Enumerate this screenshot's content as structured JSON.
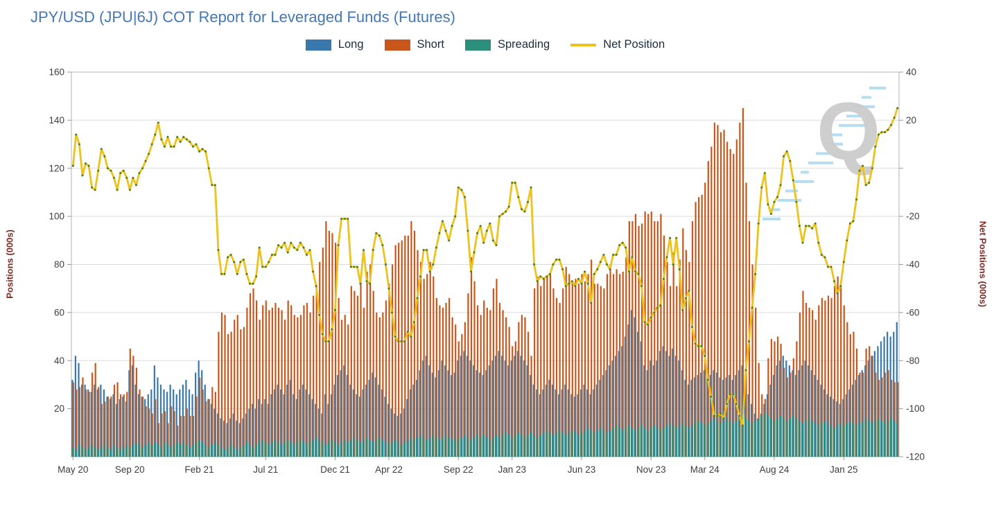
{
  "title": "JPY/USD (JPU|6J) COT Report for Leveraged Funds (Futures)",
  "legend": {
    "items": [
      {
        "label": "Long",
        "color": "#3878ad",
        "swatch": "box"
      },
      {
        "label": "Short",
        "color": "#c9561a",
        "swatch": "box"
      },
      {
        "label": "Spreading",
        "color": "#2b8f7c",
        "swatch": "box"
      },
      {
        "label": "Net Position",
        "color": "#ecc21c",
        "swatch": "line"
      }
    ]
  },
  "left_axis": {
    "title": "Positions (000s)",
    "tick_labels": [
      "160",
      "140",
      "120",
      "100",
      "80",
      "60",
      "40",
      "20"
    ],
    "range": [
      0,
      160
    ]
  },
  "right_axis": {
    "title": "Net Positions (000s)",
    "tick_labels": [
      "40",
      "20",
      "",
      "-20",
      "-40",
      "-60",
      "-80",
      "-100",
      "-120"
    ],
    "range": [
      -120,
      40
    ]
  },
  "x_axis": {
    "tick_labels": [
      "May 20",
      "Sep 20",
      "Feb 21",
      "Jul 21",
      "Dec 21",
      "Apr 22",
      "Sep 22",
      "Jan 23",
      "Jun 23",
      "Nov 23",
      "Mar 24",
      "Aug 24",
      "Jan 25"
    ],
    "tick_week_indices": [
      0,
      18,
      40,
      61,
      83,
      100,
      122,
      139,
      161,
      183,
      200,
      222,
      244
    ]
  },
  "watermark": {
    "letter": "Q",
    "letter_color": "#cccccc",
    "dash_color": "#aedcf0"
  },
  "colors": {
    "title": "#4477b6",
    "legend_text": "#1d2b3a",
    "axis_title": "#7d2b24",
    "tick_text": "#3d3d3d",
    "grid": "#dcdcdc",
    "frame": "#b3b3b3",
    "tick_mark": "#999999",
    "long": "#3878ad",
    "short": "#c9561a",
    "spreading": "#2b8f7c",
    "overlap": "#82746a",
    "net_line": "#ecc21c",
    "net_marker": "#4b7a1f"
  },
  "chart_data": {
    "type": "bar",
    "subtype": "weekly grouped bars (Long, Short, Spreading) with Net Position line on secondary axis",
    "x_unit": "weekly COT reports, May 2020 - May 2025",
    "n_points": 262,
    "x_tick_labels": [
      "May 20",
      "Sep 20",
      "Feb 21",
      "Jul 21",
      "Dec 21",
      "Apr 22",
      "Sep 22",
      "Jan 23",
      "Jun 23",
      "Nov 23",
      "Mar 24",
      "Aug 24",
      "Jan 25"
    ],
    "x_tick_week_indices": [
      0,
      18,
      40,
      61,
      83,
      100,
      122,
      139,
      161,
      183,
      200,
      222,
      244
    ],
    "title": "JPY/USD (JPU|6J) COT Report for Leveraged Funds (Futures)",
    "ylabel_left": "Positions (000s)",
    "ylim_left": [
      0,
      160
    ],
    "ylabel_right": "Net Positions (000s)",
    "ylim_right": [
      -120,
      40
    ],
    "grid": "horizontal only",
    "legend_position": "top center",
    "relationship": "net_position = long - short",
    "series": [
      {
        "name": "Long",
        "type": "bar",
        "axis": "left",
        "values": [
          32,
          42,
          39,
          30,
          30,
          28,
          27,
          30,
          28,
          30,
          28,
          25,
          24,
          26,
          22,
          24,
          25,
          23,
          36,
          38,
          30,
          26,
          25,
          24,
          26,
          28,
          38,
          33,
          30,
          28,
          27,
          30,
          28,
          26,
          28,
          30,
          32,
          28,
          26,
          35,
          40,
          36,
          30,
          24,
          22,
          20,
          18,
          16,
          15,
          14,
          16,
          18,
          15,
          14,
          16,
          18,
          20,
          22,
          20,
          24,
          22,
          24,
          22,
          26,
          28,
          30,
          28,
          26,
          30,
          32,
          26,
          24,
          28,
          30,
          28,
          26,
          24,
          22,
          20,
          18,
          26,
          22,
          26,
          30,
          34,
          36,
          38,
          34,
          30,
          28,
          26,
          25,
          28,
          30,
          32,
          35,
          33,
          30,
          28,
          25,
          22,
          20,
          18,
          17,
          18,
          20,
          24,
          28,
          30,
          32,
          36,
          40,
          42,
          38,
          35,
          33,
          36,
          40,
          38,
          36,
          34,
          35,
          40,
          42,
          44,
          42,
          40,
          38,
          36,
          35,
          34,
          36,
          38,
          40,
          42,
          44,
          42,
          40,
          38,
          40,
          42,
          44,
          42,
          40,
          38,
          34,
          30,
          28,
          26,
          28,
          30,
          32,
          30,
          28,
          26,
          28,
          30,
          28,
          26,
          25,
          26,
          28,
          30,
          28,
          26,
          28,
          30,
          32,
          34,
          36,
          38,
          40,
          42,
          44,
          46,
          50,
          55,
          61,
          58,
          52,
          48,
          38,
          36,
          40,
          38,
          40,
          44,
          46,
          44,
          42,
          45,
          42,
          40,
          36,
          32,
          30,
          32,
          33,
          34,
          35,
          36,
          35,
          34,
          36,
          35,
          33,
          32,
          33,
          34,
          32,
          34,
          36,
          38,
          30,
          26,
          22,
          18,
          16,
          18,
          22,
          26,
          30,
          34,
          38,
          40,
          42,
          40,
          38,
          36,
          34,
          36,
          38,
          40,
          38,
          36,
          34,
          32,
          30,
          28,
          26,
          25,
          24,
          23,
          22,
          24,
          26,
          28,
          30,
          32,
          34,
          36,
          38,
          40,
          42,
          44,
          46,
          48,
          50,
          52,
          50,
          52,
          56
        ]
      },
      {
        "name": "Short",
        "type": "bar",
        "axis": "left",
        "values": [
          31,
          28,
          29,
          33,
          28,
          27,
          35,
          39,
          29,
          22,
          23,
          25,
          25,
          30,
          31,
          26,
          26,
          27,
          45,
          42,
          37,
          28,
          25,
          21,
          20,
          18,
          24,
          14,
          18,
          19,
          14,
          21,
          19,
          13,
          17,
          17,
          20,
          17,
          17,
          25,
          33,
          28,
          23,
          24,
          29,
          27,
          52,
          60,
          59,
          51,
          52,
          57,
          59,
          53,
          54,
          62,
          68,
          70,
          65,
          57,
          63,
          65,
          61,
          62,
          64,
          62,
          61,
          57,
          65,
          63,
          59,
          58,
          59,
          63,
          64,
          60,
          67,
          71,
          81,
          87,
          98,
          94,
          93,
          89,
          66,
          57,
          59,
          55,
          71,
          69,
          67,
          73,
          62,
          77,
          80,
          69,
          60,
          58,
          60,
          65,
          72,
          80,
          88,
          89,
          90,
          92,
          92,
          98,
          94,
          86,
          81,
          74,
          76,
          81,
          75,
          66,
          63,
          62,
          64,
          66,
          58,
          55,
          48,
          51,
          56,
          68,
          83,
          73,
          63,
          59,
          65,
          62,
          61,
          70,
          74,
          64,
          61,
          58,
          54,
          46,
          48,
          56,
          59,
          58,
          52,
          42,
          70,
          75,
          71,
          74,
          75,
          76,
          70,
          66,
          64,
          70,
          79,
          76,
          73,
          74,
          72,
          76,
          73,
          76,
          82,
          72,
          72,
          71,
          70,
          76,
          80,
          76,
          78,
          76,
          77,
          83,
          98,
          98,
          101,
          96,
          97,
          102,
          101,
          102,
          98,
          98,
          101,
          92,
          81,
          71,
          85,
          71,
          82,
          95,
          86,
          81,
          98,
          106,
          108,
          109,
          114,
          123,
          129,
          139,
          138,
          135,
          136,
          131,
          128,
          126,
          132,
          139,
          145,
          114,
          98,
          80,
          62,
          39,
          26,
          24,
          41,
          49,
          48,
          50,
          47,
          37,
          33,
          35,
          41,
          48,
          60,
          69,
          64,
          62,
          61,
          57,
          63,
          66,
          65,
          67,
          66,
          71,
          75,
          71,
          63,
          56,
          51,
          52,
          45,
          35,
          35,
          45,
          46,
          42,
          35,
          32,
          33,
          35,
          36,
          32,
          31,
          31
        ]
      },
      {
        "name": "Spreading",
        "type": "bar",
        "axis": "left",
        "values": [
          4,
          3,
          5,
          4,
          3,
          4,
          5,
          4,
          3,
          4,
          5,
          4,
          3,
          5,
          4,
          3,
          4,
          5,
          4,
          5,
          6,
          5,
          4,
          5,
          6,
          5,
          6,
          5,
          4,
          6,
          5,
          4,
          5,
          6,
          5,
          6,
          5,
          4,
          5,
          6,
          7,
          6,
          5,
          4,
          5,
          6,
          5,
          4,
          3,
          4,
          5,
          4,
          3,
          4,
          5,
          6,
          5,
          4,
          5,
          6,
          7,
          6,
          5,
          6,
          7,
          6,
          5,
          6,
          7,
          6,
          5,
          6,
          7,
          6,
          5,
          6,
          7,
          8,
          7,
          6,
          5,
          6,
          7,
          6,
          5,
          6,
          7,
          6,
          7,
          8,
          7,
          6,
          7,
          8,
          7,
          6,
          7,
          8,
          7,
          6,
          5,
          6,
          7,
          6,
          5,
          6,
          7,
          8,
          7,
          8,
          9,
          8,
          7,
          8,
          9,
          8,
          7,
          8,
          9,
          8,
          7,
          8,
          7,
          8,
          9,
          8,
          7,
          8,
          9,
          8,
          9,
          8,
          7,
          8,
          9,
          8,
          9,
          10,
          9,
          8,
          9,
          10,
          9,
          8,
          9,
          10,
          9,
          8,
          9,
          10,
          11,
          10,
          9,
          10,
          11,
          10,
          9,
          10,
          11,
          10,
          9,
          10,
          11,
          12,
          11,
          10,
          11,
          12,
          11,
          10,
          11,
          12,
          13,
          12,
          11,
          12,
          13,
          12,
          11,
          12,
          13,
          12,
          11,
          12,
          13,
          12,
          11,
          12,
          13,
          14,
          13,
          12,
          13,
          14,
          13,
          12,
          13,
          14,
          15,
          14,
          13,
          14,
          15,
          16,
          15,
          14,
          15,
          16,
          15,
          14,
          15,
          16,
          17,
          16,
          15,
          14,
          15,
          16,
          17,
          18,
          17,
          16,
          15,
          16,
          17,
          16,
          15,
          16,
          17,
          16,
          15,
          14,
          15,
          16,
          15,
          14,
          13,
          14,
          15,
          14,
          13,
          12,
          13,
          14,
          13,
          14,
          15,
          14,
          13,
          14,
          15,
          16,
          15,
          14,
          15,
          16,
          15,
          14,
          15,
          16,
          15,
          14
        ]
      },
      {
        "name": "Net Position",
        "type": "line",
        "axis": "right",
        "values": [
          1,
          14,
          10,
          -3,
          2,
          1,
          -8,
          -9,
          -1,
          8,
          5,
          0,
          -1,
          -4,
          -9,
          -2,
          -1,
          -4,
          -9,
          -4,
          -7,
          -2,
          0,
          3,
          6,
          10,
          14,
          19,
          12,
          9,
          13,
          9,
          9,
          13,
          11,
          13,
          12,
          11,
          9,
          10,
          7,
          8,
          7,
          0,
          -7,
          -7,
          -34,
          -44,
          -44,
          -37,
          -36,
          -39,
          -44,
          -39,
          -38,
          -44,
          -48,
          -48,
          -45,
          -33,
          -41,
          -41,
          -39,
          -36,
          -36,
          -32,
          -33,
          -31,
          -35,
          -31,
          -33,
          -34,
          -31,
          -33,
          -36,
          -34,
          -43,
          -49,
          -61,
          -69,
          -72,
          -72,
          -67,
          -59,
          -32,
          -21,
          -21,
          -21,
          -41,
          -41,
          -41,
          -48,
          -34,
          -47,
          -48,
          -34,
          -27,
          -28,
          -32,
          -40,
          -50,
          -60,
          -70,
          -72,
          -72,
          -72,
          -68,
          -70,
          -64,
          -54,
          -45,
          -34,
          -34,
          -43,
          -40,
          -33,
          -27,
          -22,
          -26,
          -30,
          -24,
          -20,
          -8,
          -9,
          -12,
          -26,
          -43,
          -35,
          -27,
          -24,
          -31,
          -26,
          -23,
          -30,
          -32,
          -20,
          -19,
          -18,
          -16,
          -6,
          -6,
          -12,
          -17,
          -18,
          -14,
          -8,
          -40,
          -47,
          -45,
          -46,
          -45,
          -44,
          -40,
          -38,
          -38,
          -42,
          -49,
          -48,
          -47,
          -49,
          -46,
          -48,
          -43,
          -48,
          -56,
          -44,
          -42,
          -39,
          -36,
          -40,
          -42,
          -36,
          -36,
          -32,
          -31,
          -33,
          -43,
          -37,
          -43,
          -44,
          -49,
          -64,
          -65,
          -62,
          -60,
          -58,
          -57,
          -46,
          -37,
          -29,
          -40,
          -29,
          -42,
          -59,
          -54,
          -51,
          -66,
          -73,
          -74,
          -74,
          -78,
          -88,
          -95,
          -103,
          -103,
          -102,
          -104,
          -98,
          -94,
          -94,
          -98,
          -103,
          -107,
          -84,
          -72,
          -58,
          -44,
          -23,
          -8,
          -2,
          -15,
          -19,
          -14,
          -12,
          -7,
          5,
          7,
          3,
          -5,
          -14,
          -24,
          -31,
          -24,
          -24,
          -25,
          -23,
          -31,
          -36,
          -37,
          -41,
          -41,
          -47,
          -52,
          -49,
          -39,
          -30,
          -23,
          -22,
          -13,
          -1,
          1,
          -7,
          -6,
          0,
          9,
          14,
          15,
          15,
          16,
          18,
          21,
          25
        ]
      }
    ]
  }
}
